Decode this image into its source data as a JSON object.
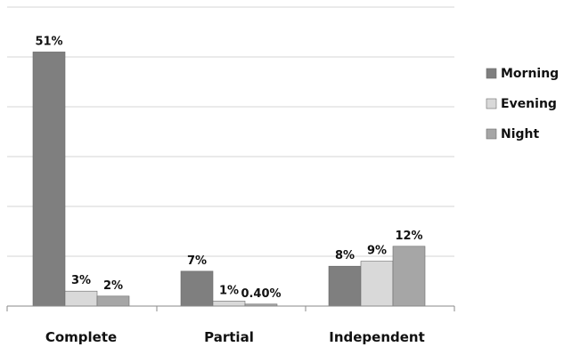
{
  "chart_data": {
    "type": "bar",
    "title": "",
    "xlabel": "",
    "ylabel": "",
    "categories": [
      "Complete",
      "Partial",
      "Independent"
    ],
    "series": [
      {
        "name": "Morning",
        "color": "#7f7f7f",
        "values": [
          51,
          7,
          8
        ],
        "labels": [
          "51%",
          "7%",
          "8%"
        ]
      },
      {
        "name": "Evening",
        "color": "#d9d9d9",
        "values": [
          3,
          1,
          9
        ],
        "labels": [
          "3%",
          "1%",
          "9%"
        ]
      },
      {
        "name": "Night",
        "color": "#a6a6a6",
        "values": [
          2,
          0.4,
          12
        ],
        "labels": [
          "2%",
          "0.40%",
          "12%"
        ]
      }
    ],
    "ylim": [
      0,
      60
    ],
    "grid": true,
    "legend": "right"
  }
}
